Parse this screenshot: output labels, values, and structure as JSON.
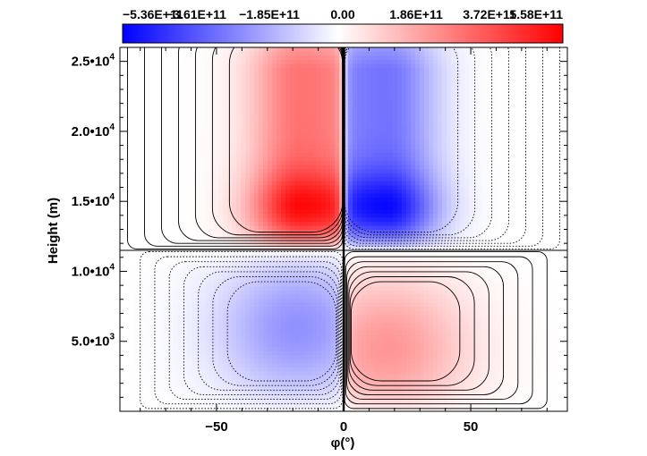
{
  "chart_data": {
    "type": "heatmap",
    "title": "",
    "xlabel": "φ(°)",
    "ylabel": "Height (m)",
    "xlim": [
      -88,
      88
    ],
    "ylim": [
      0,
      26000
    ],
    "x_ticks": [
      {
        "value": -50,
        "label": "−50"
      },
      {
        "value": 0,
        "label": "0"
      },
      {
        "value": 50,
        "label": "50"
      }
    ],
    "y_ticks": [
      {
        "value": 5000,
        "label": "5.0•",
        "exp": "10",
        "pow": "3"
      },
      {
        "value": 10000,
        "label": "1.0•",
        "exp": "10",
        "pow": "4"
      },
      {
        "value": 15000,
        "label": "1.5•",
        "exp": "10",
        "pow": "4"
      },
      {
        "value": 20000,
        "label": "2.0•",
        "exp": "10",
        "pow": "4"
      },
      {
        "value": 25000,
        "label": "2.5•",
        "exp": "10",
        "pow": "4"
      }
    ],
    "colorbar": {
      "min": -536000000000.0,
      "max": 558000000000.0,
      "colors": [
        "#0000ff",
        "#ffffff",
        "#ff0000"
      ],
      "tick_labels": [
        "−5.36E+11",
        "−3.61E+11",
        "−1.85E+11",
        "0.00",
        "1.86E+11",
        "3.72E+11",
        "5.58E+11"
      ]
    },
    "cells": [
      {
        "name": "upper-left",
        "sign": 1,
        "x_range": [
          -85,
          0
        ],
        "y_range": [
          11500,
          26000
        ],
        "peak": {
          "x": -17,
          "y": 14500,
          "value": 558000000000.0
        }
      },
      {
        "name": "upper-right",
        "sign": -1,
        "x_range": [
          0,
          85
        ],
        "y_range": [
          11500,
          26000
        ],
        "peak": {
          "x": 17,
          "y": 14500,
          "value": -536000000000.0
        }
      },
      {
        "name": "lower-left",
        "sign": -1,
        "x_range": [
          -85,
          0
        ],
        "y_range": [
          0,
          11500
        ],
        "peak": {
          "x": -18,
          "y": 6000,
          "value": -230000000000.0
        }
      },
      {
        "name": "lower-right",
        "sign": 1,
        "x_range": [
          0,
          85
        ],
        "y_range": [
          0,
          11500
        ],
        "peak": {
          "x": 17,
          "y": 4500,
          "value": 230000000000.0
        }
      }
    ],
    "contours": "solid lines for positive values, dotted lines for negative values",
    "grid": false
  },
  "colors": {
    "positive": "#ff0000",
    "negative": "#0000ff",
    "zero": "#ffffff"
  }
}
